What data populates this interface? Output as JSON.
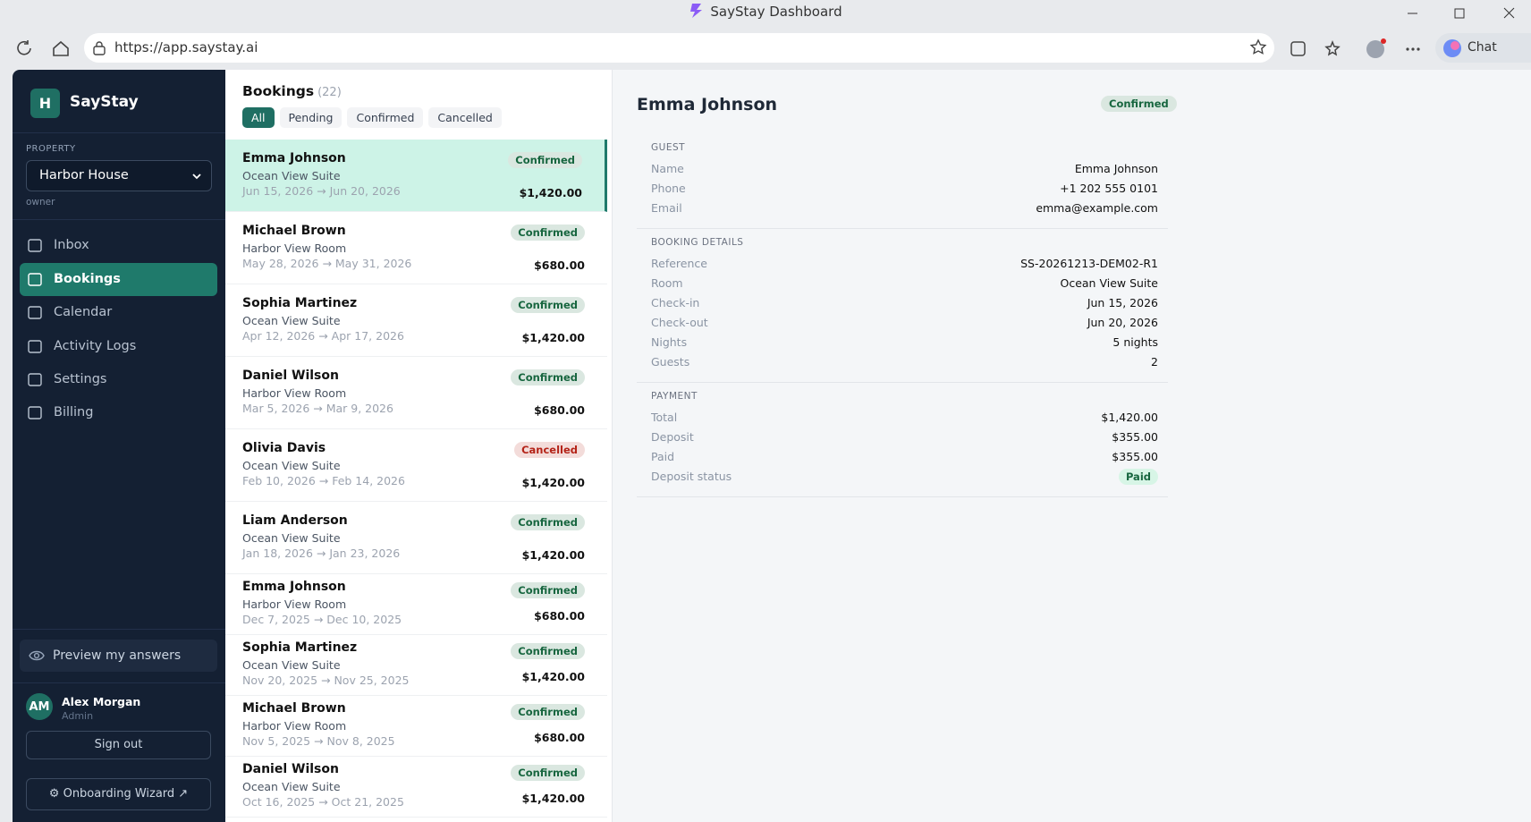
{
  "browser": {
    "title": "SayStay Dashboard",
    "url": "https://app.saystay.ai",
    "chat": "Chat"
  },
  "sidebar": {
    "logo_letter": "H",
    "brand": "SayStay",
    "property_label": "PROPERTY",
    "property": "Harbor House",
    "role": "owner",
    "nav": [
      "Inbox",
      "Bookings",
      "Calendar",
      "Activity Logs",
      "Settings",
      "Billing"
    ],
    "preview": "Preview my answers",
    "user": {
      "initials": "AM",
      "name": "Alex Morgan",
      "role": "Admin"
    },
    "sign_out": "Sign out",
    "wizard": "⚙ Onboarding Wizard ↗"
  },
  "bookings": {
    "title": "Bookings",
    "count": "(22)",
    "filters": [
      "All",
      "Pending",
      "Confirmed",
      "Cancelled"
    ],
    "items": [
      {
        "name": "Emma Johnson",
        "room": "Ocean View Suite",
        "dates": "Jun 15, 2026 → Jun 20, 2026",
        "status": "Confirmed",
        "color": "#17663f",
        "amount": "$1,420.00"
      },
      {
        "name": "Michael Brown",
        "room": "Harbor View Room",
        "dates": "May 28, 2026 → May 31, 2026",
        "status": "Confirmed",
        "color": "#17663f",
        "amount": "$680.00"
      },
      {
        "name": "Sophia Martinez",
        "room": "Ocean View Suite",
        "dates": "Apr 12, 2026 → Apr 17, 2026",
        "status": "Confirmed",
        "color": "#17663f",
        "amount": "$1,420.00"
      },
      {
        "name": "Daniel Wilson",
        "room": "Harbor View Room",
        "dates": "Mar 5, 2026 → Mar 9, 2026",
        "status": "Confirmed",
        "color": "#17663f",
        "amount": "$680.00"
      },
      {
        "name": "Olivia Davis",
        "room": "Ocean View Suite",
        "dates": "Feb 10, 2026 → Feb 14, 2026",
        "status": "Cancelled",
        "color": "#b42318",
        "amount": "$1,420.00"
      },
      {
        "name": "Liam Anderson",
        "room": "Ocean View Suite",
        "dates": "Jan 18, 2026 → Jan 23, 2026",
        "status": "Confirmed",
        "color": "#17663f",
        "amount": "$1,420.00"
      },
      {
        "name": "Emma Johnson",
        "room": "Harbor View Room",
        "dates": "Dec 7, 2025 → Dec 10, 2025",
        "status": "Confirmed",
        "color": "#17663f",
        "amount": "$680.00"
      },
      {
        "name": "Sophia Martinez",
        "room": "Ocean View Suite",
        "dates": "Nov 20, 2025 → Nov 25, 2025",
        "status": "Confirmed",
        "color": "#17663f",
        "amount": "$1,420.00"
      },
      {
        "name": "Michael Brown",
        "room": "Harbor View Room",
        "dates": "Nov 5, 2025 → Nov 8, 2025",
        "status": "Confirmed",
        "color": "#17663f",
        "amount": "$680.00"
      },
      {
        "name": "Daniel Wilson",
        "room": "Ocean View Suite",
        "dates": "Oct 16, 2025 → Oct 21, 2025",
        "status": "Confirmed",
        "color": "#17663f",
        "amount": "$1,420.00"
      }
    ]
  },
  "detail": {
    "name": "Emma Johnson",
    "status": "Confirmed",
    "sections": [
      {
        "title": "GUEST",
        "rows": [
          [
            "Name",
            "Emma Johnson"
          ],
          [
            "Phone",
            "+1 202 555 0101"
          ],
          [
            "Email",
            "emma@example.com"
          ]
        ]
      },
      {
        "title": "BOOKING DETAILS",
        "rows": [
          [
            "Reference",
            "SS-20261213-DEM02-R1"
          ],
          [
            "Room",
            "Ocean View Suite"
          ],
          [
            "Check-in",
            "Jun 15, 2026"
          ],
          [
            "Check-out",
            "Jun 20, 2026"
          ],
          [
            "Nights",
            "5 nights"
          ],
          [
            "Guests",
            "2"
          ]
        ]
      },
      {
        "title": "PAYMENT",
        "rows": [
          [
            "Total",
            "$1,420.00"
          ],
          [
            "Deposit",
            "$355.00"
          ],
          [
            "Paid",
            "$355.00"
          ],
          [
            "Deposit status",
            "Paid"
          ]
        ]
      }
    ]
  }
}
